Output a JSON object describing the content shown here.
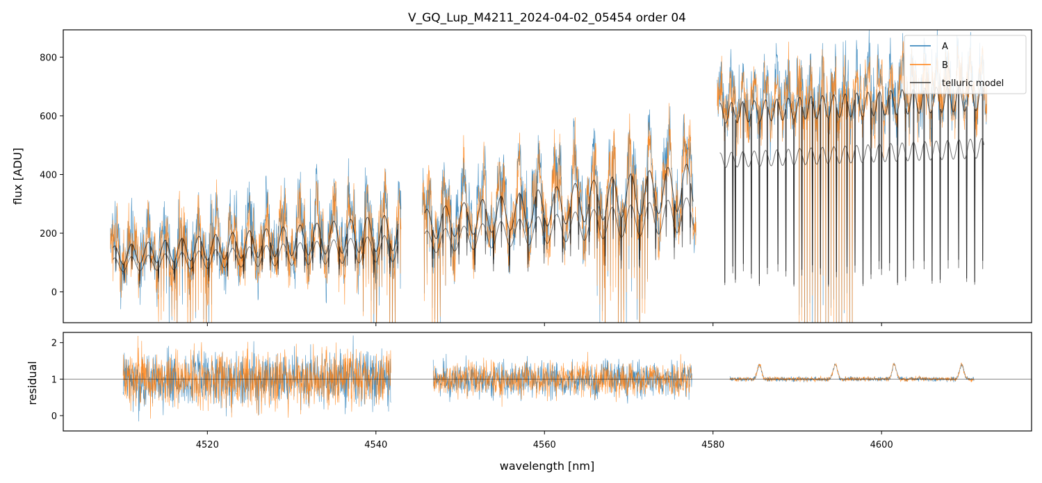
{
  "chart_data": [
    {
      "type": "line",
      "panel": "spectrum",
      "title": "V_GQ_Lup_M4211_2024-04-02_05454  order 04",
      "xlabel": "",
      "ylabel": "flux [ADU]",
      "xlim": [
        4502.9,
        4617.8
      ],
      "ylim": [
        -105,
        893
      ],
      "xticks": [
        4520,
        4540,
        4560,
        4580,
        4600
      ],
      "yticks": [
        0,
        200,
        400,
        600,
        800
      ],
      "ytick_labels": [
        "0",
        "200",
        "400",
        "600",
        "800"
      ],
      "x_range": [
        4508.5,
        4612.5
      ],
      "gap": [
        4543.0,
        4545.5
      ],
      "segments": [
        {
          "x0": 4508.5,
          "x1": 4543.0,
          "base0": 130,
          "base1": 215,
          "amp0": 55,
          "amp1": 110,
          "period": 2.0
        },
        {
          "x0": 4545.5,
          "x1": 4578.0,
          "base0": 240,
          "base1": 380,
          "amp0": 90,
          "amp1": 140,
          "period": 2.2
        },
        {
          "x0": 4580.5,
          "x1": 4612.5,
          "base0": 640,
          "base1": 700,
          "amp0": 60,
          "amp1": 80,
          "period": 1.35
        }
      ],
      "series": [
        {
          "name": "A",
          "color": "#1f77b4"
        },
        {
          "name": "B",
          "color": "#ff7f0e"
        },
        {
          "name": "telluric model",
          "color": "#000000"
        }
      ],
      "legend": {
        "location": "upper right",
        "entries": [
          "A",
          "B",
          "telluric model"
        ]
      }
    },
    {
      "type": "line",
      "panel": "residual",
      "xlabel": "wavelength [nm]",
      "ylabel": "residual",
      "xlim": [
        4502.9,
        4617.8
      ],
      "ylim": [
        -0.42,
        2.28
      ],
      "xticks": [
        4520,
        4540,
        4560,
        4580,
        4600
      ],
      "xtick_labels": [
        "4520",
        "4540",
        "4560",
        "4580",
        "4600"
      ],
      "yticks": [
        0,
        1,
        2
      ],
      "ytick_labels": [
        "0",
        "1",
        "2"
      ],
      "reference_line": 1,
      "segments": [
        {
          "x0": 4510.0,
          "x1": 4541.8,
          "spread": 0.75
        },
        {
          "x0": 4546.8,
          "x1": 4577.5,
          "spread": 0.45
        },
        {
          "x0": 4582.0,
          "x1": 4611.0,
          "spread": 0.06
        }
      ],
      "bumps": [
        4585.5,
        4594.5,
        4601.5,
        4609.5
      ],
      "series": [
        {
          "name": "A",
          "color": "#1f77b4"
        },
        {
          "name": "B",
          "color": "#ff7f0e"
        }
      ]
    }
  ]
}
